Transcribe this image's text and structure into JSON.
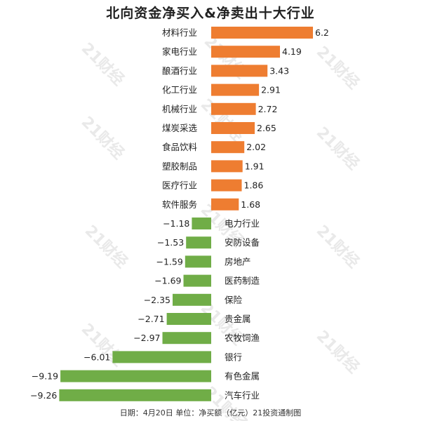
{
  "title": "北向资金净买入&净卖出十大行业",
  "footer": "日期：4月20日 单位：净买额（亿元）21投资通制图",
  "watermark": "21财经",
  "colors": {
    "positive": "#ee7d31",
    "negative": "#70ad47"
  },
  "chart_data": {
    "type": "bar",
    "orientation": "horizontal",
    "categories": [
      "材料行业",
      "家电行业",
      "酿酒行业",
      "化工行业",
      "机械行业",
      "煤炭采选",
      "食品饮料",
      "塑胶制品",
      "医疗行业",
      "软件服务",
      "电力行业",
      "安防设备",
      "房地产",
      "医药制造",
      "保险",
      "贵金属",
      "农牧饲渔",
      "银行",
      "有色金属",
      "汽车行业"
    ],
    "values": [
      6.2,
      4.19,
      3.43,
      2.91,
      2.72,
      2.65,
      2.02,
      1.91,
      1.86,
      1.68,
      -1.18,
      -1.53,
      -1.59,
      -1.69,
      -2.35,
      -2.71,
      -2.97,
      -6.01,
      -9.19,
      -9.26
    ],
    "value_labels": [
      "6.2",
      "4.19",
      "3.43",
      "2.91",
      "2.72",
      "2.65",
      "2.02",
      "1.91",
      "1.86",
      "1.68",
      "−1.18",
      "−1.53",
      "−1.59",
      "−1.69",
      "−2.35",
      "−2.71",
      "−2.97",
      "−6.01",
      "−9.19",
      "−9.26"
    ],
    "title": "北向资金净买入&净卖出十大行业",
    "xlabel": "",
    "ylabel": "",
    "xlim": [
      -9.26,
      6.2
    ],
    "grid": false,
    "legend": "none"
  }
}
